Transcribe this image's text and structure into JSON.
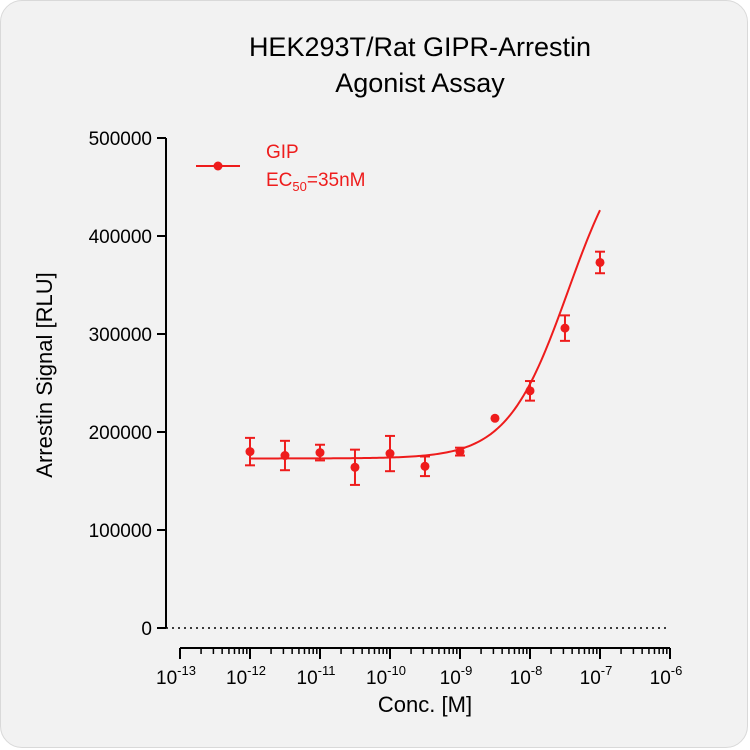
{
  "chart_data": {
    "type": "scatter",
    "title_lines": [
      "HEK293T/Rat GIPR-Arrestin",
      "Agonist Assay"
    ],
    "xlabel": "Conc. [M]",
    "ylabel": "Arrestin Signal [RLU]",
    "x_scale": "log",
    "xlim": [
      1e-13,
      1e-06
    ],
    "ylim": [
      0,
      500000
    ],
    "y_ticks": [
      {
        "value": 0,
        "label": "0"
      },
      {
        "value": 100000,
        "label": "100000"
      },
      {
        "value": 200000,
        "label": "200000"
      },
      {
        "value": 300000,
        "label": "300000"
      },
      {
        "value": 400000,
        "label": "400000"
      },
      {
        "value": 500000,
        "label": "500000"
      }
    ],
    "x_ticks": [
      {
        "exp": -13,
        "base": "10",
        "sup": "-13"
      },
      {
        "exp": -12,
        "base": "10",
        "sup": "-12"
      },
      {
        "exp": -11,
        "base": "10",
        "sup": "-11"
      },
      {
        "exp": -10,
        "base": "10",
        "sup": "-10"
      },
      {
        "exp": -9,
        "base": "10",
        "sup": "-9"
      },
      {
        "exp": -8,
        "base": "10",
        "sup": "-8"
      },
      {
        "exp": -7,
        "base": "10",
        "sup": "-7"
      },
      {
        "exp": -6,
        "base": "10",
        "sup": "-6"
      }
    ],
    "legend": {
      "position": "top-left",
      "name": "GIP",
      "ec50_prefix": "EC",
      "ec50_sub": "50",
      "ec50_suffix": "=35nM"
    },
    "series": [
      {
        "name": "GIP",
        "color": "#ee1c1c",
        "points": [
          {
            "x": 1e-12,
            "y": 180000,
            "err": 14000
          },
          {
            "x": 3.16e-12,
            "y": 176000,
            "err": 15000
          },
          {
            "x": 1e-11,
            "y": 179000,
            "err": 8000
          },
          {
            "x": 3.16e-11,
            "y": 164000,
            "err": 18000
          },
          {
            "x": 1e-10,
            "y": 178000,
            "err": 18000
          },
          {
            "x": 3.16e-10,
            "y": 165000,
            "err": 10000
          },
          {
            "x": 1e-09,
            "y": 180000,
            "err": 4000
          },
          {
            "x": 3.16e-09,
            "y": 214000,
            "err": 0
          },
          {
            "x": 1e-08,
            "y": 242000,
            "err": 10000
          },
          {
            "x": 3.16e-08,
            "y": 306000,
            "err": 13000
          },
          {
            "x": 1e-07,
            "y": 373000,
            "err": 11000
          }
        ],
        "fit": {
          "bottom": 173000,
          "top": 515000,
          "ec50": 3.5e-08,
          "hill": 1.0,
          "x_range": [
            1e-12,
            1e-07
          ]
        }
      }
    ],
    "baseline": {
      "value": 0,
      "style": "dotted"
    }
  }
}
